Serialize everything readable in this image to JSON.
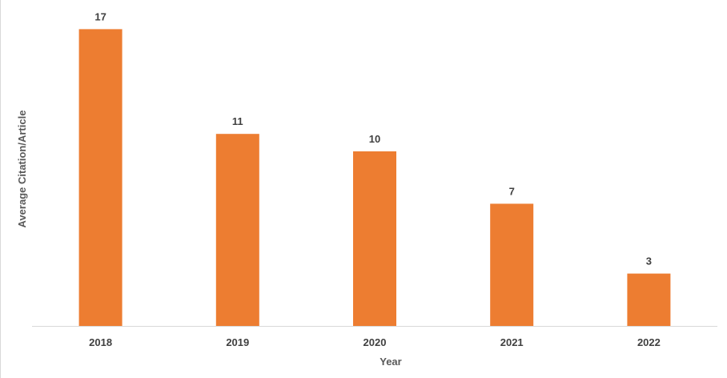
{
  "chart_data": {
    "type": "bar",
    "categories": [
      "2018",
      "2019",
      "2020",
      "2021",
      "2022"
    ],
    "values": [
      17,
      11,
      10,
      7,
      3
    ],
    "data_labels": [
      "17",
      "11",
      "10",
      "7",
      "3"
    ],
    "title": "",
    "xlabel": "Year",
    "ylabel": "Average Citation/Article",
    "ylim": [
      0,
      18
    ],
    "grid": false,
    "legend": "none",
    "bar_color": "#ED7D31"
  }
}
